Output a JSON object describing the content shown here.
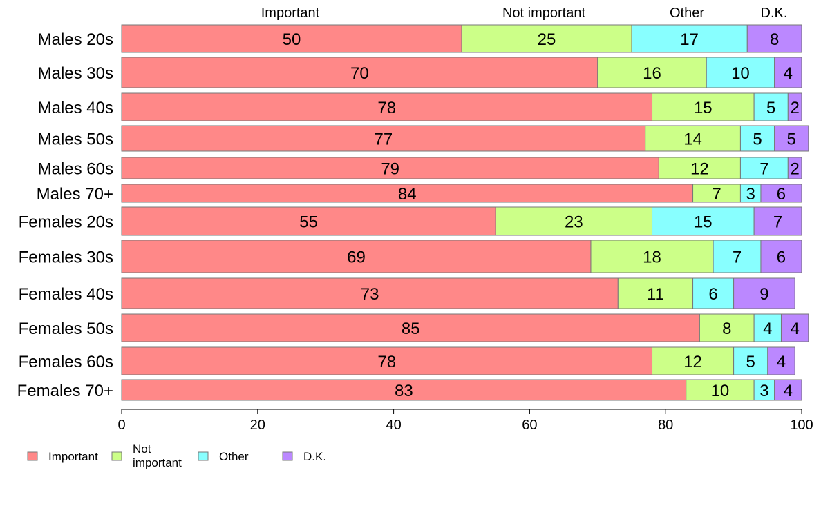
{
  "chart_data": {
    "type": "bar",
    "orientation": "horizontal",
    "stacked": true,
    "categories": [
      "Males 20s",
      "Males 30s",
      "Males 40s",
      "Males 50s",
      "Males 60s",
      "Males 70+",
      "Females 20s",
      "Females 30s",
      "Females 40s",
      "Females 50s",
      "Females 60s",
      "Females 70+"
    ],
    "series": [
      {
        "name": "Important",
        "legend_lines": [
          "Important"
        ],
        "header": "Important",
        "color": "#ff8888",
        "values": [
          50,
          70,
          78,
          77,
          79,
          84,
          55,
          69,
          73,
          85,
          78,
          83
        ]
      },
      {
        "name": "Not important",
        "legend_lines": [
          "Not",
          "important"
        ],
        "header": "Not important",
        "color": "#ccff88",
        "values": [
          25,
          16,
          15,
          14,
          12,
          7,
          23,
          18,
          11,
          8,
          12,
          10
        ]
      },
      {
        "name": "Other",
        "legend_lines": [
          "Other"
        ],
        "header": "Other",
        "color": "#88ffff",
        "values": [
          17,
          10,
          5,
          5,
          7,
          3,
          15,
          7,
          6,
          4,
          5,
          3
        ]
      },
      {
        "name": "D.K.",
        "legend_lines": [
          "D.K."
        ],
        "header": "D.K.",
        "color": "#bb88ff",
        "values": [
          8,
          4,
          2,
          5,
          2,
          6,
          7,
          6,
          9,
          4,
          4,
          4
        ]
      }
    ],
    "xlim": [
      0,
      100
    ],
    "xticks": [
      0,
      20,
      40,
      60,
      80,
      100
    ],
    "grid": false,
    "legend_position": "bottom-left",
    "title": "",
    "xlabel": "",
    "ylabel": ""
  }
}
